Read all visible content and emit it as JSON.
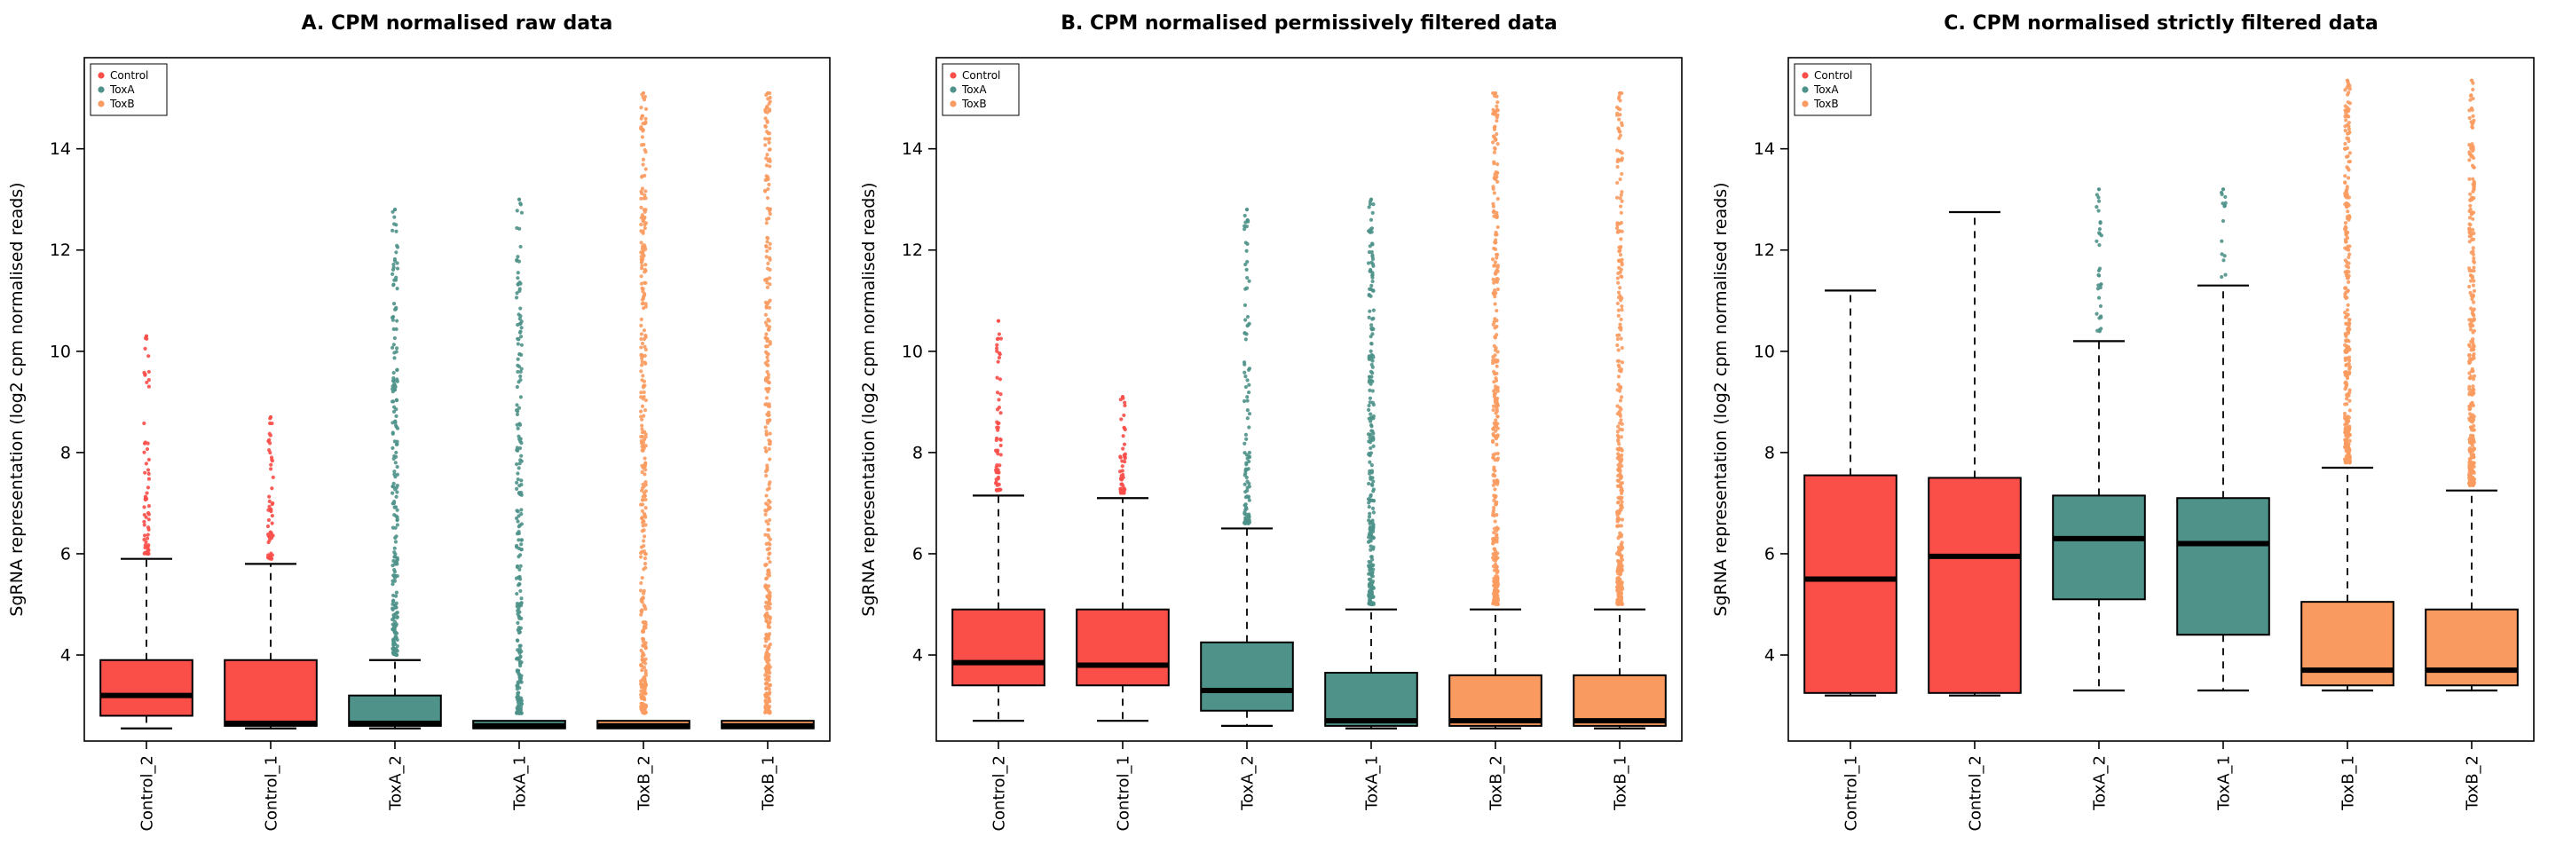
{
  "colors": {
    "Control": "#FA4E49",
    "ToxA": "#4E928A",
    "ToxB": "#F99B61"
  },
  "legend_labels": [
    "Control",
    "ToxA",
    "ToxB"
  ],
  "ylabel": "SgRNA representation (log2 cpm normalised reads)",
  "yticks": [
    4,
    6,
    8,
    10,
    12,
    14
  ],
  "ylim": [
    2.3,
    15.8
  ],
  "chart_data": [
    {
      "type": "boxplot",
      "title": "A. CPM normalised raw data",
      "groups": [
        {
          "label": "Control_2",
          "series": "Control",
          "q1": 2.8,
          "median": 3.2,
          "q3": 3.9,
          "whisker_low": 2.55,
          "whisker_high": 5.9,
          "outliers": {
            "min": 6.0,
            "max": 10.3,
            "n": 60,
            "spread": 2.2
          }
        },
        {
          "label": "Control_1",
          "series": "Control",
          "q1": 2.6,
          "median": 2.65,
          "q3": 3.9,
          "whisker_low": 2.55,
          "whisker_high": 5.8,
          "outliers": {
            "min": 5.9,
            "max": 8.7,
            "n": 50,
            "spread": 2.2
          }
        },
        {
          "label": "ToxA_2",
          "series": "ToxA",
          "q1": 2.6,
          "median": 2.65,
          "q3": 3.2,
          "whisker_low": 2.55,
          "whisker_high": 3.9,
          "outliers": {
            "min": 4.0,
            "max": 12.8,
            "n": 210,
            "spread": 1.9
          }
        },
        {
          "label": "ToxA_1",
          "series": "ToxA",
          "q1": 2.55,
          "median": 2.6,
          "q3": 2.7,
          "whisker_low": 2.55,
          "whisker_high": 2.7,
          "outliers": {
            "min": 2.85,
            "max": 13.0,
            "n": 240,
            "spread": 1.9
          }
        },
        {
          "label": "ToxB_2",
          "series": "ToxB",
          "q1": 2.55,
          "median": 2.6,
          "q3": 2.7,
          "whisker_low": 2.55,
          "whisker_high": 2.7,
          "outliers": {
            "min": 2.85,
            "max": 15.1,
            "n": 340,
            "spread": 1.6
          }
        },
        {
          "label": "ToxB_1",
          "series": "ToxB",
          "q1": 2.55,
          "median": 2.6,
          "q3": 2.7,
          "whisker_low": 2.55,
          "whisker_high": 2.7,
          "outliers": {
            "min": 2.85,
            "max": 15.1,
            "n": 340,
            "spread": 1.6
          }
        }
      ]
    },
    {
      "type": "boxplot",
      "title": "B. CPM normalised permissively filtered data",
      "groups": [
        {
          "label": "Control_2",
          "series": "Control",
          "q1": 3.4,
          "median": 3.85,
          "q3": 4.9,
          "whisker_low": 2.7,
          "whisker_high": 7.15,
          "outliers": {
            "min": 7.25,
            "max": 10.6,
            "n": 60,
            "spread": 2.2
          }
        },
        {
          "label": "Control_1",
          "series": "Control",
          "q1": 3.4,
          "median": 3.8,
          "q3": 4.9,
          "whisker_low": 2.7,
          "whisker_high": 7.1,
          "outliers": {
            "min": 7.2,
            "max": 9.1,
            "n": 50,
            "spread": 2.2
          }
        },
        {
          "label": "ToxA_2",
          "series": "ToxA",
          "q1": 2.9,
          "median": 3.3,
          "q3": 4.25,
          "whisker_low": 2.6,
          "whisker_high": 6.5,
          "outliers": {
            "min": 6.6,
            "max": 12.8,
            "n": 110,
            "spread": 2.0
          }
        },
        {
          "label": "ToxA_1",
          "series": "ToxA",
          "q1": 2.6,
          "median": 2.7,
          "q3": 3.65,
          "whisker_low": 2.55,
          "whisker_high": 4.9,
          "outliers": {
            "min": 5.0,
            "max": 13.0,
            "n": 260,
            "spread": 1.8
          }
        },
        {
          "label": "ToxB_2",
          "series": "ToxB",
          "q1": 2.6,
          "median": 2.7,
          "q3": 3.6,
          "whisker_low": 2.55,
          "whisker_high": 4.9,
          "outliers": {
            "min": 5.0,
            "max": 15.1,
            "n": 320,
            "spread": 1.7
          }
        },
        {
          "label": "ToxB_1",
          "series": "ToxB",
          "q1": 2.6,
          "median": 2.7,
          "q3": 3.6,
          "whisker_low": 2.55,
          "whisker_high": 4.9,
          "outliers": {
            "min": 5.0,
            "max": 15.1,
            "n": 320,
            "spread": 1.7
          }
        }
      ]
    },
    {
      "type": "boxplot",
      "title": "C. CPM normalised strictly filtered data",
      "groups": [
        {
          "label": "Control_1",
          "series": "Control",
          "q1": 3.25,
          "median": 5.5,
          "q3": 7.55,
          "whisker_low": 3.2,
          "whisker_high": 11.2,
          "outliers": {
            "min": 0,
            "max": 0,
            "n": 0,
            "spread": 1
          }
        },
        {
          "label": "Control_2",
          "series": "Control",
          "q1": 3.25,
          "median": 5.95,
          "q3": 7.5,
          "whisker_low": 3.2,
          "whisker_high": 12.75,
          "outliers": {
            "min": 0,
            "max": 0,
            "n": 0,
            "spread": 1
          }
        },
        {
          "label": "ToxA_2",
          "series": "ToxA",
          "q1": 5.1,
          "median": 6.3,
          "q3": 7.15,
          "whisker_low": 3.3,
          "whisker_high": 10.2,
          "outliers": {
            "min": 10.35,
            "max": 13.2,
            "n": 32,
            "spread": 1.8
          }
        },
        {
          "label": "ToxA_1",
          "series": "ToxA",
          "q1": 4.4,
          "median": 6.2,
          "q3": 7.1,
          "whisker_low": 3.3,
          "whisker_high": 11.3,
          "outliers": {
            "min": 11.45,
            "max": 13.2,
            "n": 14,
            "spread": 1.5
          }
        },
        {
          "label": "ToxB_1",
          "series": "ToxB",
          "q1": 3.4,
          "median": 3.7,
          "q3": 5.05,
          "whisker_low": 3.3,
          "whisker_high": 7.7,
          "outliers": {
            "min": 7.8,
            "max": 15.35,
            "n": 300,
            "spread": 1.7
          }
        },
        {
          "label": "ToxB_2",
          "series": "ToxB",
          "q1": 3.4,
          "median": 3.7,
          "q3": 4.9,
          "whisker_low": 3.3,
          "whisker_high": 7.25,
          "outliers": {
            "min": 7.35,
            "max": 15.35,
            "n": 300,
            "spread": 1.7
          }
        }
      ]
    }
  ]
}
